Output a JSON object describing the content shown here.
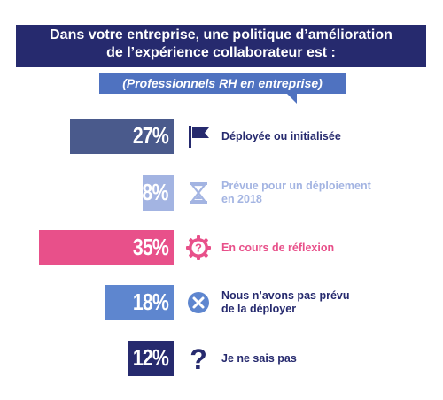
{
  "header": {
    "title_line1": "Dans votre entreprise, une politique d’amélioration",
    "title_line2": "de l’expérience collaborateur est :",
    "subtitle": "(Professionnels RH en entreprise)"
  },
  "colors": {
    "title_bg": "#262a6e",
    "subtitle_bg": "#4f72c0"
  },
  "chart_data": {
    "type": "bar",
    "orientation": "horizontal",
    "title": "Dans votre entreprise, une politique d’amélioration de l’expérience collaborateur est :",
    "subtitle": "(Professionnels RH en entreprise)",
    "unit": "%",
    "categories": [
      "Déployée ou initialisée",
      "Prévue pour un déploiement en 2018",
      "En cours de réflexion",
      "Nous n’avons pas prévu de la déployer",
      "Je ne sais pas"
    ],
    "values": [
      27,
      8,
      35,
      18,
      12
    ],
    "items": [
      {
        "value": 27,
        "display": "27%",
        "label_lines": [
          "Déployée ou initialisée"
        ],
        "color": "#4a5a8c",
        "label_color": "#262a6e",
        "icon": "flag-icon"
      },
      {
        "value": 8,
        "display": "8%",
        "label_lines": [
          "Prévue pour un déploiement",
          "en 2018"
        ],
        "color": "#a3b4e2",
        "label_color": "#a3b4e2",
        "icon": "hourglass-icon"
      },
      {
        "value": 35,
        "display": "35%",
        "label_lines": [
          "En cours de réflexion"
        ],
        "color": "#e8508a",
        "label_color": "#e8508a",
        "icon": "question-gear-icon"
      },
      {
        "value": 18,
        "display": "18%",
        "label_lines": [
          "Nous n’avons pas prévu",
          "de la déployer"
        ],
        "color": "#5e86cf",
        "label_color": "#262a6e",
        "icon": "x-circle-icon"
      },
      {
        "value": 12,
        "display": "12%",
        "label_lines": [
          "Je ne sais pas"
        ],
        "color": "#262a6e",
        "label_color": "#262a6e",
        "icon": "question-mark-icon"
      }
    ]
  }
}
